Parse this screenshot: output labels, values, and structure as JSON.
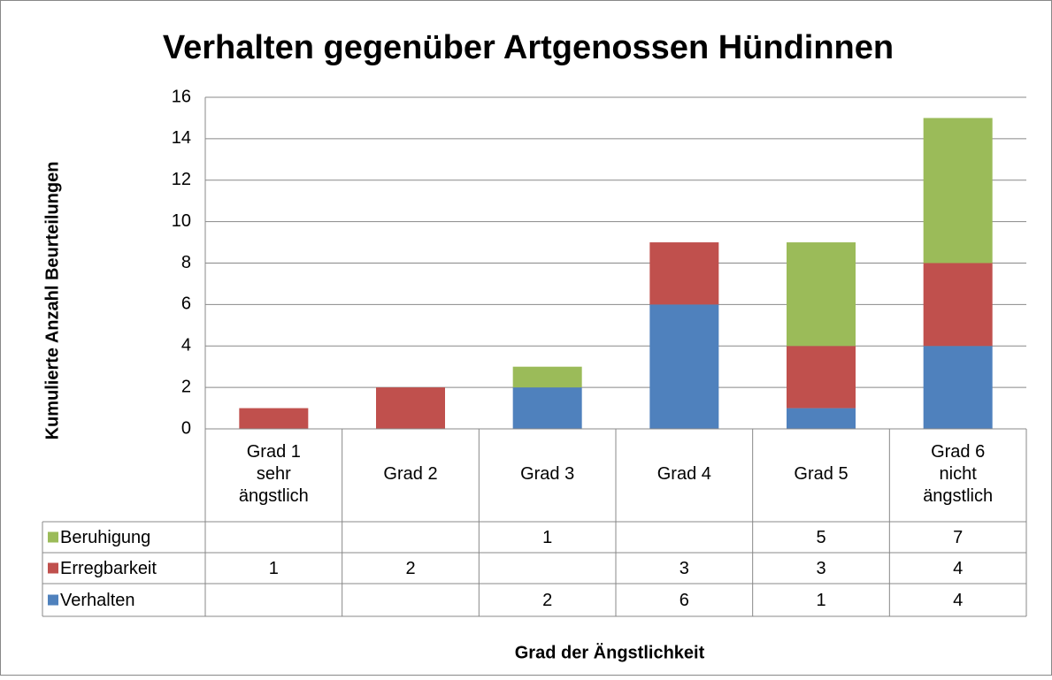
{
  "chart_data": {
    "type": "stacked_bar",
    "title": "Verhalten gegenüber Artgenossen Hündinnen",
    "y_label": "Kumulierte Anzahl Beurteilungen",
    "x_label": "Grad der Ängstlichkeit",
    "categories": [
      "Grad 1\nsehr\nängstlich",
      "Grad 2",
      "Grad 3",
      "Grad 4",
      "Grad 5",
      "Grad 6\nnicht\nängstlich"
    ],
    "series": [
      {
        "name": "Verhalten",
        "color": "#4f81bd",
        "values": [
          null,
          null,
          2,
          6,
          1,
          4
        ]
      },
      {
        "name": "Erregbarkeit",
        "color": "#c0504d",
        "values": [
          1,
          2,
          null,
          3,
          3,
          4
        ]
      },
      {
        "name": "Beruhigung",
        "color": "#9bbb59",
        "values": [
          null,
          null,
          1,
          null,
          5,
          7
        ]
      }
    ],
    "ylim": [
      0,
      16
    ],
    "yticks": [
      0,
      2,
      4,
      6,
      8,
      10,
      12,
      14,
      16
    ],
    "grid": true,
    "data_table": true
  }
}
